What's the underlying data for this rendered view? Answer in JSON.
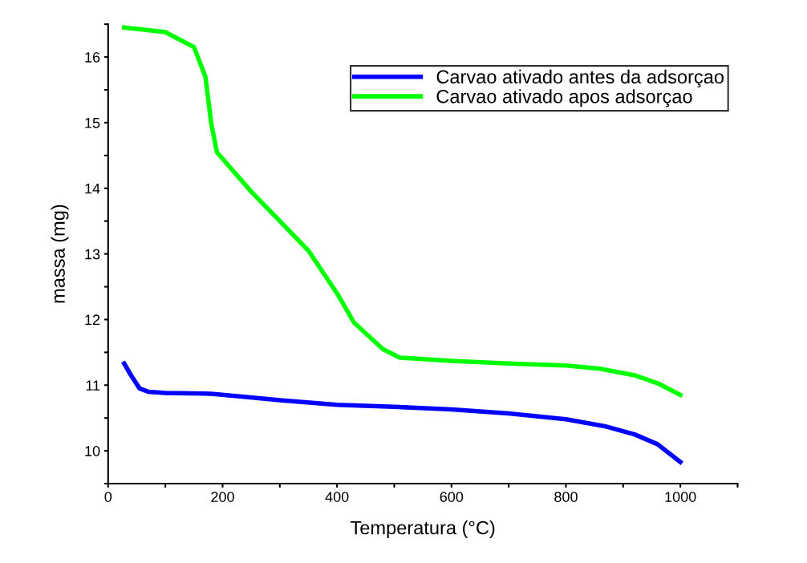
{
  "chart_data": {
    "type": "line",
    "xlabel": "Temperatura (°C)",
    "ylabel": "massa (mg)",
    "xlim": [
      0,
      1100
    ],
    "xticks": [
      0,
      {
        "value": 100,
        "label": null
      },
      200,
      {
        "value": 300,
        "label": null
      },
      400,
      {
        "value": 500,
        "label": null
      },
      600,
      {
        "value": 700,
        "label": null
      },
      800,
      {
        "value": 900,
        "label": null
      },
      1000,
      {
        "value": 1100,
        "label": null
      }
    ],
    "ylim": [
      9.5,
      16.5
    ],
    "yticks": [
      {
        "value": 9.5,
        "label": null
      },
      10,
      {
        "value": 10.5,
        "label": null
      },
      11,
      {
        "value": 11.5,
        "label": null
      },
      12,
      {
        "value": 12.5,
        "label": null
      },
      13,
      {
        "value": 13.5,
        "label": null
      },
      14,
      {
        "value": 14.5,
        "label": null
      },
      15,
      {
        "value": 15.5,
        "label": null
      },
      16,
      {
        "value": 16.5,
        "label": null
      }
    ],
    "grid": false,
    "legend": "top right",
    "marker": "none",
    "line_style": "solid",
    "series": [
      {
        "name": "Carvao ativado antes da adsorçao",
        "color": "#0000ff",
        "x": [
          28,
          40,
          55,
          70,
          100,
          180,
          230,
          300,
          400,
          500,
          600,
          700,
          800,
          870,
          920,
          960,
          1000
        ],
        "values": [
          11.33,
          11.15,
          10.95,
          10.9,
          10.88,
          10.87,
          10.83,
          10.77,
          10.7,
          10.67,
          10.63,
          10.57,
          10.48,
          10.37,
          10.25,
          10.1,
          9.83
        ]
      },
      {
        "name": "Carvao ativado apos adsorçao",
        "color": "#00ff00",
        "x": [
          28,
          100,
          150,
          170,
          180,
          190,
          250,
          300,
          350,
          400,
          430,
          480,
          510,
          600,
          700,
          800,
          860,
          920,
          960,
          1000
        ],
        "values": [
          16.45,
          16.38,
          16.15,
          15.7,
          15.0,
          14.55,
          13.95,
          13.5,
          13.05,
          12.4,
          11.95,
          11.55,
          11.42,
          11.37,
          11.33,
          11.3,
          11.25,
          11.15,
          11.03,
          10.85
        ]
      }
    ]
  }
}
